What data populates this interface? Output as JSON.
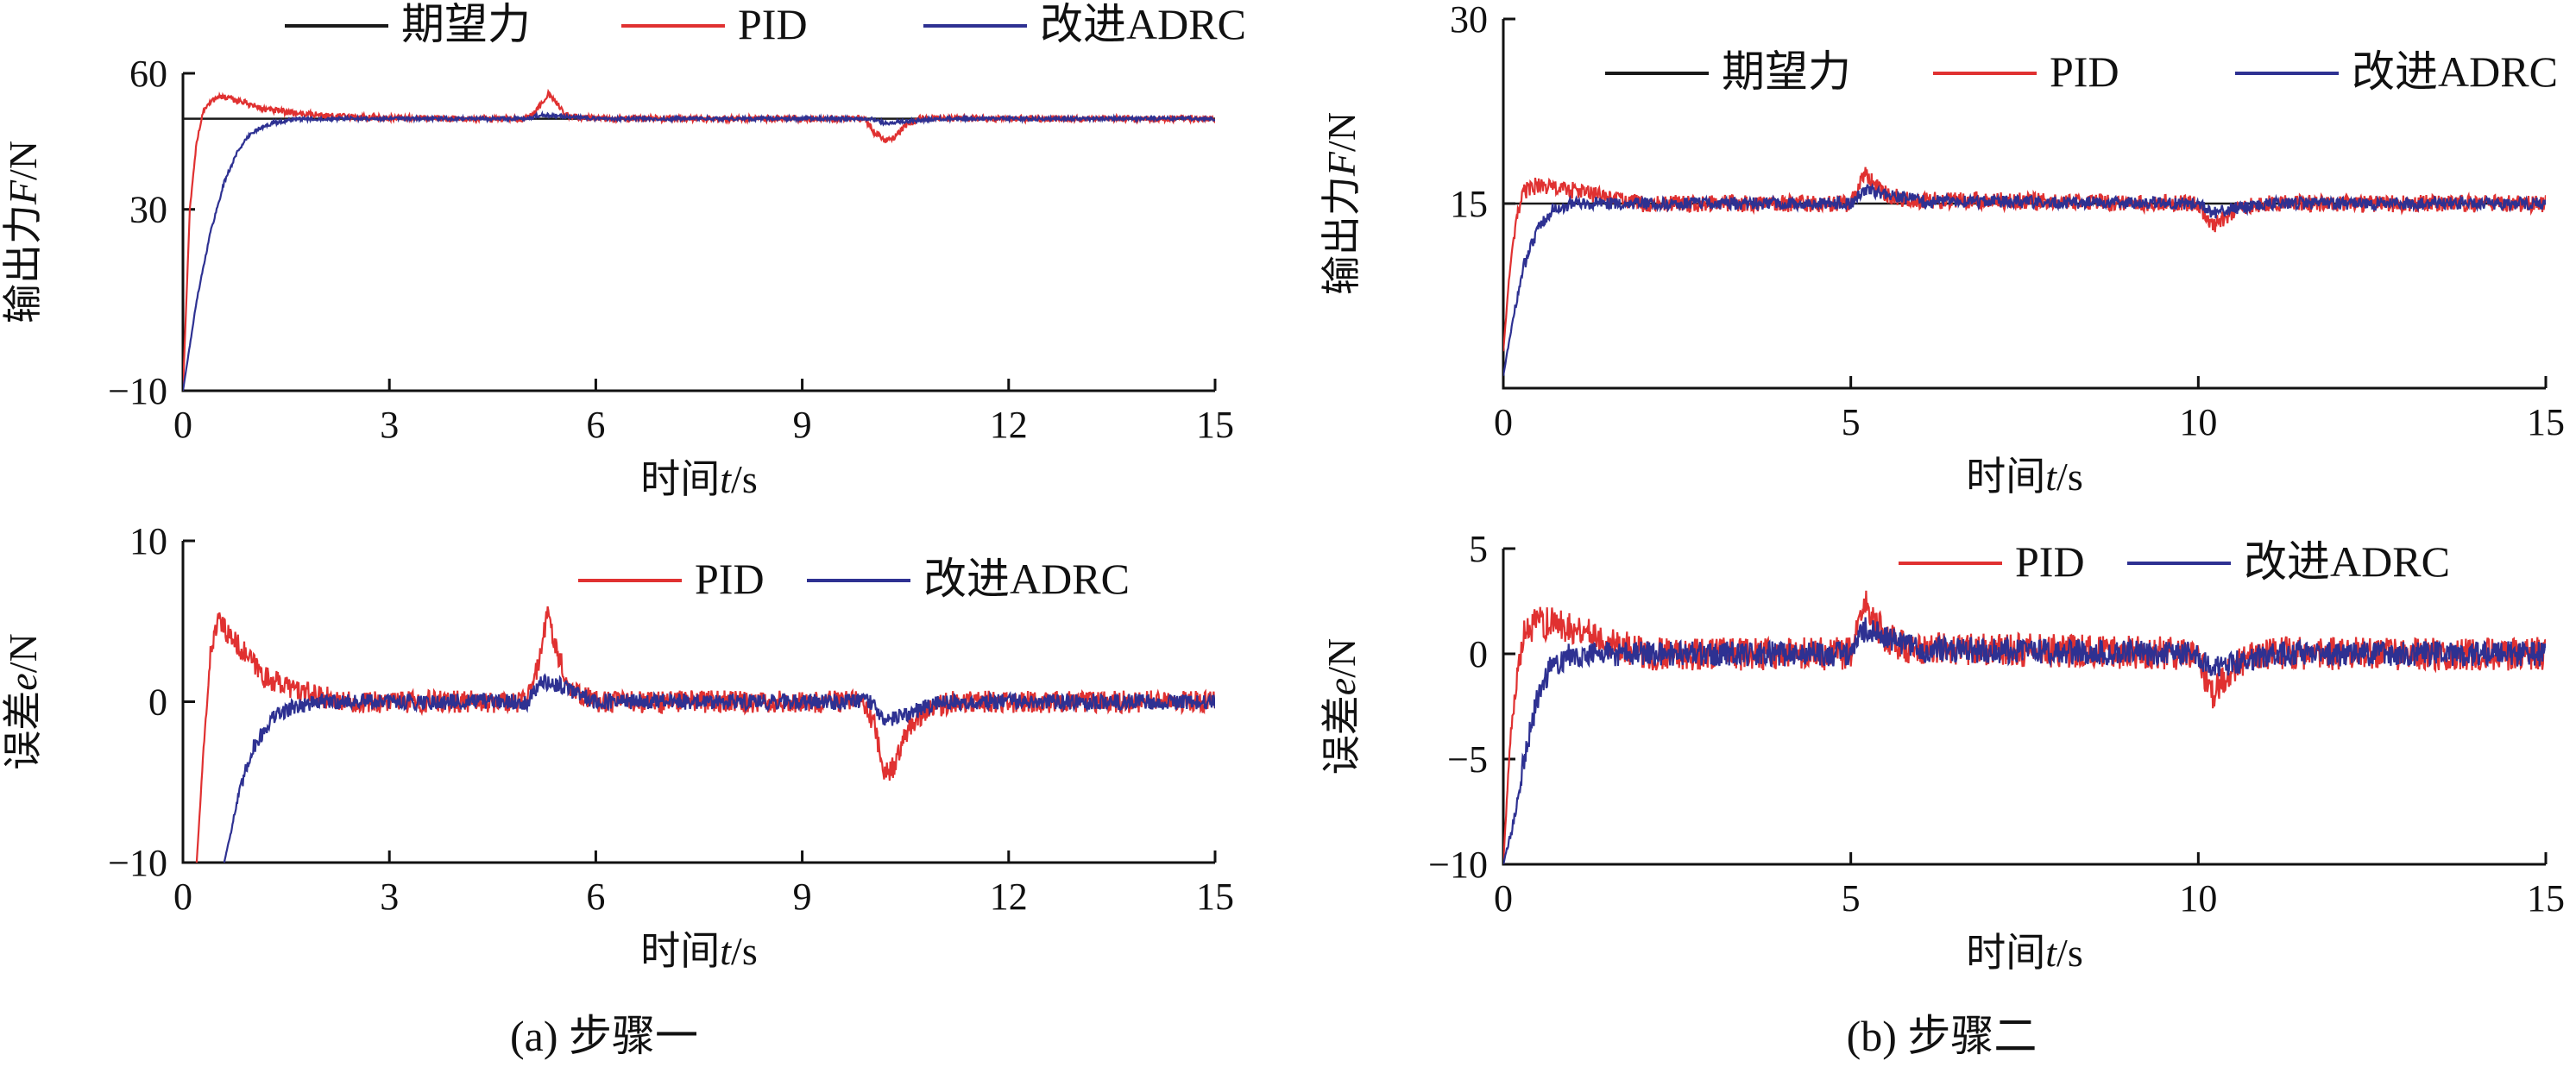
{
  "colors": {
    "desired": "#1a1a1a",
    "pid": "#e03131",
    "adrc": "#2e3192"
  },
  "legend_labels": {
    "desired": "期望力",
    "pid": "PID",
    "adrc": "改进ADRC"
  },
  "axis_labels": {
    "force_y_prefix": "输出力",
    "force_y_var": "F",
    "force_y_unit": "/N",
    "error_y_prefix": "误差",
    "error_y_var": "e",
    "error_y_unit": "/N",
    "x_prefix": "时间",
    "x_var": "t",
    "x_unit": "/s"
  },
  "captions": {
    "a": "(a) 步骤一",
    "b": "(b) 步骤二"
  },
  "chart_data": [
    {
      "id": "a-force",
      "type": "line",
      "xlabel": "时间t/s",
      "ylabel": "输出力F/N",
      "xlim": [
        0,
        15
      ],
      "ylim": [
        -10,
        60
      ],
      "xticks": [
        0,
        3,
        6,
        9,
        12,
        15
      ],
      "yticks": [
        -10,
        30,
        60
      ],
      "ytick_labels": [
        "−10",
        "30",
        "60"
      ],
      "legend": [
        "期望力",
        "PID",
        "改进ADRC"
      ],
      "series": [
        {
          "name": "期望力",
          "x": [
            0,
            15
          ],
          "y": [
            50,
            50
          ]
        },
        {
          "name": "PID",
          "x": [
            0,
            0.1,
            0.2,
            0.3,
            0.5,
            0.8,
            1.2,
            1.8,
            2.5,
            4,
            5,
            5.15,
            5.3,
            5.45,
            5.6,
            6,
            8,
            9.9,
            10.05,
            10.2,
            10.35,
            10.5,
            10.7,
            11,
            13,
            15
          ],
          "y": [
            -10,
            30,
            45,
            52,
            55,
            54,
            52,
            51,
            50.3,
            50,
            50,
            52,
            55.5,
            53,
            50.5,
            50,
            50,
            50,
            47,
            45,
            46,
            48.5,
            50,
            50,
            50,
            50
          ],
          "noise": 0.7
        },
        {
          "name": "改进ADRC",
          "x": [
            0,
            0.2,
            0.4,
            0.6,
            0.8,
            1.0,
            1.3,
            1.6,
            2.0,
            5,
            5.2,
            5.5,
            6,
            10,
            10.2,
            10.5,
            11,
            15
          ],
          "y": [
            -10,
            10,
            25,
            36,
            43,
            47,
            49,
            49.8,
            50,
            50,
            50.8,
            50.6,
            50,
            50,
            49,
            49.4,
            50,
            50
          ],
          "noise": 0.4
        }
      ]
    },
    {
      "id": "a-error",
      "type": "line",
      "xlabel": "时间t/s",
      "ylabel": "误差e/N",
      "xlim": [
        0,
        15
      ],
      "ylim": [
        -10,
        10
      ],
      "xticks": [
        0,
        3,
        6,
        9,
        12,
        15
      ],
      "yticks": [
        -10,
        0,
        10
      ],
      "ytick_labels": [
        "−10",
        "0",
        "10"
      ],
      "legend": [
        "PID",
        "改进ADRC"
      ],
      "series": [
        {
          "name": "PID",
          "x": [
            0.2,
            0.3,
            0.4,
            0.5,
            0.8,
            1.2,
            1.8,
            2.4,
            5,
            5.15,
            5.3,
            5.45,
            5.6,
            6,
            9.9,
            10.05,
            10.2,
            10.35,
            10.55,
            10.8,
            11.2,
            15
          ],
          "y": [
            -10,
            -3,
            3,
            5,
            3.5,
            1.5,
            0.5,
            0,
            0,
            2,
            5.5,
            3,
            1,
            0,
            0,
            -1.5,
            -4.5,
            -4,
            -1.5,
            -0.5,
            0,
            0
          ],
          "noise": 0.7
        },
        {
          "name": "改进ADRC",
          "x": [
            0.6,
            0.8,
            1.0,
            1.3,
            1.6,
            2.0,
            5,
            5.2,
            5.5,
            6,
            10,
            10.2,
            10.5,
            11,
            15
          ],
          "y": [
            -10,
            -6,
            -3,
            -1,
            -0.3,
            0,
            0,
            1.2,
            1,
            0,
            0,
            -1.2,
            -0.8,
            0,
            0
          ],
          "noise": 0.5
        }
      ]
    },
    {
      "id": "b-force",
      "type": "line",
      "xlabel": "时间t/s",
      "ylabel": "输出力F/N",
      "xlim": [
        0,
        15
      ],
      "ylim": [
        0,
        30
      ],
      "xticks": [
        0,
        5,
        10,
        15
      ],
      "yticks": [
        15,
        30
      ],
      "ytick_labels": [
        "15",
        "30"
      ],
      "legend": [
        "期望力",
        "PID",
        "改进ADRC"
      ],
      "series": [
        {
          "name": "期望力",
          "x": [
            0,
            15
          ],
          "y": [
            15,
            15
          ]
        },
        {
          "name": "PID",
          "x": [
            0,
            0.1,
            0.2,
            0.3,
            0.5,
            0.8,
            1.1,
            1.5,
            2.0,
            5,
            5.1,
            5.2,
            5.35,
            5.5,
            5.8,
            10,
            10.1,
            10.2,
            10.35,
            10.6,
            11,
            15
          ],
          "y": [
            3,
            10,
            14,
            16,
            16.5,
            16.2,
            16,
            15.5,
            15,
            15,
            16,
            17.5,
            16.5,
            15.8,
            15.3,
            15,
            14,
            13.2,
            13.8,
            14.8,
            15,
            15
          ],
          "noise": 0.7
        },
        {
          "name": "改进ADRC",
          "x": [
            0,
            0.15,
            0.3,
            0.5,
            0.7,
            1.0,
            1.5,
            5,
            5.2,
            5.5,
            6,
            10,
            10.2,
            10.5,
            11,
            15
          ],
          "y": [
            1,
            6,
            10,
            13,
            14.5,
            15,
            15,
            15,
            16.2,
            15.8,
            15.2,
            15,
            14.2,
            14.6,
            15,
            15
          ],
          "noise": 0.5
        }
      ]
    },
    {
      "id": "b-error",
      "type": "line",
      "xlabel": "时间t/s",
      "ylabel": "误差e/N",
      "xlim": [
        0,
        15
      ],
      "ylim": [
        -10,
        5
      ],
      "xticks": [
        0,
        5,
        10,
        15
      ],
      "yticks": [
        -10,
        -5,
        0,
        5
      ],
      "ytick_labels": [
        "−10",
        "−5",
        "0",
        "5"
      ],
      "legend": [
        "PID",
        "改进ADRC"
      ],
      "series": [
        {
          "name": "PID",
          "x": [
            0,
            0.1,
            0.2,
            0.3,
            0.5,
            0.8,
            1.2,
            1.6,
            2.0,
            5,
            5.1,
            5.2,
            5.35,
            5.5,
            5.8,
            10,
            10.1,
            10.2,
            10.35,
            10.6,
            11,
            15
          ],
          "y": [
            -10,
            -4,
            -1,
            0.8,
            1.5,
            1.4,
            1.1,
            0.5,
            0,
            0,
            1,
            2.5,
            1.5,
            0.8,
            0.3,
            0,
            -1,
            -2,
            -1.2,
            -0.3,
            0,
            0
          ],
          "noise": 0.8
        },
        {
          "name": "改进ADRC",
          "x": [
            0,
            0.15,
            0.3,
            0.5,
            0.7,
            1.0,
            1.5,
            5,
            5.2,
            5.5,
            6,
            10,
            10.2,
            10.5,
            11,
            15
          ],
          "y": [
            -10,
            -8,
            -5,
            -2,
            -0.5,
            0,
            0,
            0,
            1.2,
            0.8,
            0.2,
            0,
            -0.8,
            -0.4,
            0,
            0
          ],
          "noise": 0.6
        }
      ]
    }
  ]
}
